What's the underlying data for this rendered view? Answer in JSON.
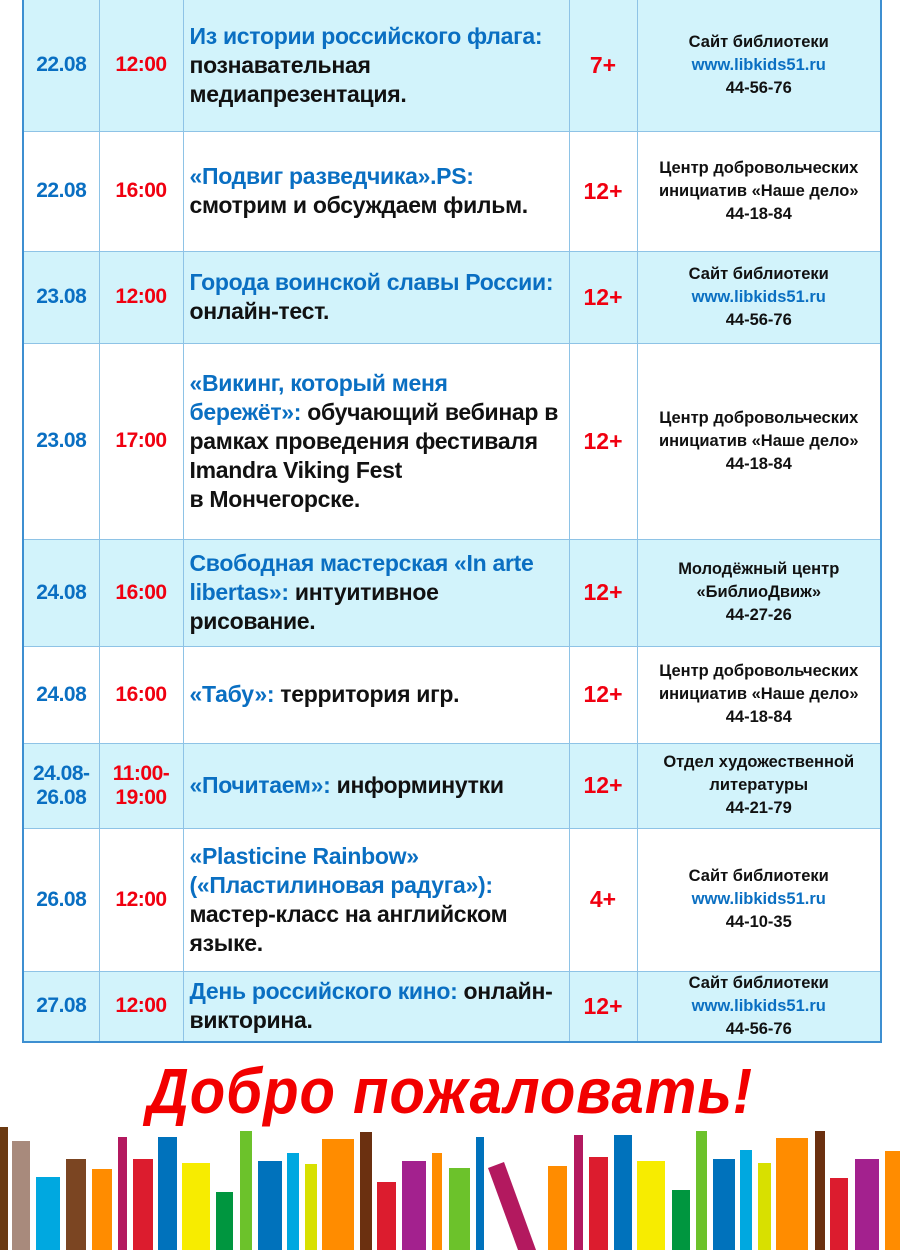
{
  "events": [
    {
      "date": "22.08",
      "time": "12:00",
      "title_blue": "Из истории российского флага:",
      "title_black": " познавательная медиапрезентация.",
      "age": "7+",
      "place_lines": [
        "Сайт библиотеки"
      ],
      "link": "www.libkids51.ru",
      "phone": "44-56-76"
    },
    {
      "date": "22.08",
      "time": "16:00",
      "title_blue": "«Подвиг разведчика».PS:",
      "title_black": " смотрим и обсуждаем фильм.",
      "age": "12+",
      "place_lines": [
        "Центр добровольческих",
        "инициатив «Наше дело»"
      ],
      "link": "",
      "phone": "44-18-84"
    },
    {
      "date": "23.08",
      "time": "12:00",
      "title_blue": "Города воинской славы России:",
      "title_black": " онлайн-тест.",
      "age": "12+",
      "place_lines": [
        "Сайт библиотеки"
      ],
      "link": "www.libkids51.ru",
      "phone": "44-56-76"
    },
    {
      "date": "23.08",
      "time": "17:00",
      "title_blue": "«Викинг, который меня бережёт»:",
      "title_black": " обучающий вебинар в рамках проведения фестиваля Imandra Viking Fest\nв Мончегорске.",
      "age": "12+",
      "place_lines": [
        "Центр добровольческих",
        "инициатив «Наше дело»"
      ],
      "link": "",
      "phone": "44-18-84"
    },
    {
      "date": "24.08",
      "time": "16:00",
      "title_blue": "Свободная мастерская «In arte libertas»:",
      "title_black": " интуитивное рисование.",
      "age": "12+",
      "place_lines": [
        "Молодёжный центр",
        "«БиблиоДвиж»"
      ],
      "link": "",
      "phone": "44-27-26"
    },
    {
      "date": "24.08",
      "time": "16:00",
      "title_blue": "«Табу»:",
      "title_black": " территория игр.",
      "age": "12+",
      "place_lines": [
        "Центр добровольческих",
        "инициатив «Наше дело»"
      ],
      "link": "",
      "phone": "44-18-84"
    },
    {
      "date": "24.08-\n26.08",
      "time": "11:00-\n19:00",
      "title_blue": "«Почитаем»:",
      "title_black": " информинутки",
      "age": "12+",
      "place_lines": [
        "Отдел художественной",
        "литературы"
      ],
      "link": "",
      "phone": "44-21-79"
    },
    {
      "date": "26.08",
      "time": "12:00",
      "title_blue": "«Plasticine Rainbow» («Пластилиновая радуга»):",
      "title_black": " мастер-класс на английском языке.",
      "age": "4+",
      "place_lines": [
        "Сайт библиотеки"
      ],
      "link": "www.libkids51.ru",
      "phone": "44-10-35"
    },
    {
      "date": "27.08",
      "time": "12:00",
      "title_blue": "День российского кино:",
      "title_black": " онлайн-викторина.",
      "age": "12+",
      "place_lines": [
        "Сайт библиотеки"
      ],
      "link": "www.libkids51.ru",
      "phone": "44-56-76"
    }
  ],
  "welcome": "Добро пожаловать!",
  "colors": {
    "blue_text": "#0a6fc2",
    "red_text": "#f00010",
    "row_alt": "#d2f3fb",
    "border": "#3d8fd1"
  }
}
